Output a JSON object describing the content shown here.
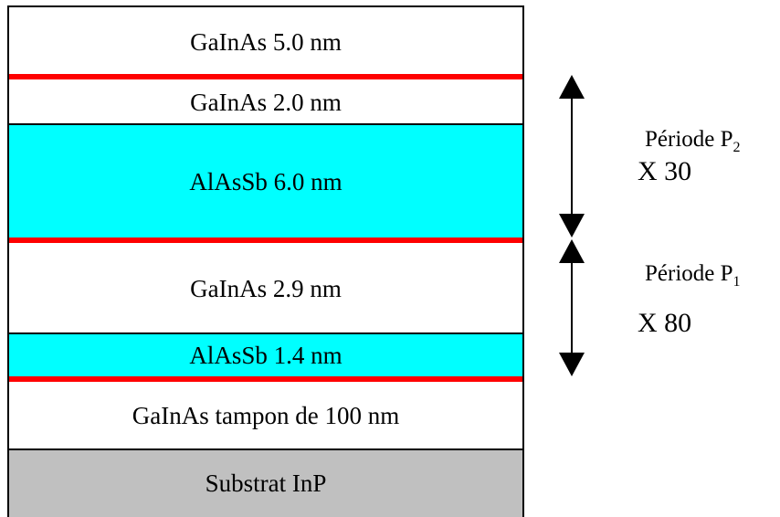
{
  "layers": [
    {
      "label": "GaInAs 5.0 nm",
      "fill": "#ffffff"
    },
    {
      "label": "GaInAs 2.0 nm",
      "fill": "#ffffff"
    },
    {
      "label": "AlAsSb 6.0 nm",
      "fill": "#00ffff"
    },
    {
      "label": "GaInAs 2.9 nm",
      "fill": "#ffffff"
    },
    {
      "label": "AlAsSb 1.4 nm",
      "fill": "#00ffff"
    },
    {
      "label": "GaInAs tampon de 100 nm",
      "fill": "#ffffff"
    },
    {
      "label": "Substrat InP",
      "fill": "#c0c0c0"
    }
  ],
  "interface_color": "#ff0000",
  "periods": [
    {
      "name": "Période P",
      "subscript": "2",
      "multiplier": "X 30"
    },
    {
      "name": "Période P",
      "subscript": "1",
      "multiplier": "X 80"
    }
  ]
}
